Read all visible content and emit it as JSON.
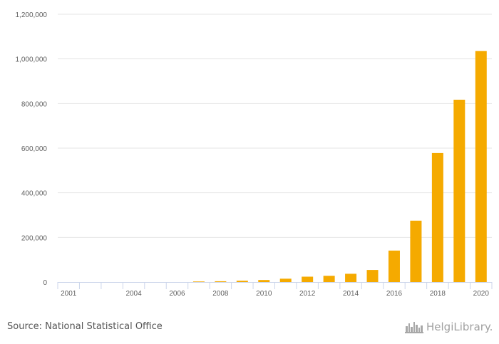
{
  "chart_data": {
    "type": "bar",
    "categories": [
      "2001",
      "2002",
      "2003",
      "2004",
      "2005",
      "2006",
      "2007",
      "2008",
      "2009",
      "2010",
      "2011",
      "2012",
      "2013",
      "2014",
      "2015",
      "2016",
      "2017",
      "2018",
      "2019",
      "2020"
    ],
    "values": [
      0,
      0,
      0,
      0,
      0,
      0,
      2500,
      3500,
      6000,
      9000,
      15000,
      24000,
      28000,
      37000,
      54000,
      141000,
      275000,
      578000,
      817000,
      1035000
    ],
    "x_tick_labels": [
      "2001",
      "2004",
      "2006",
      "2008",
      "2010",
      "2012",
      "2014",
      "2016",
      "2018",
      "2020"
    ],
    "y_ticks": [
      0,
      200000,
      400000,
      600000,
      800000,
      1000000,
      1200000
    ],
    "y_tick_labels": [
      "0",
      "200,000",
      "400,000",
      "600,000",
      "800,000",
      "1,000,000",
      "1,200,000"
    ],
    "ylim": [
      0,
      1200000
    ],
    "title": "",
    "xlabel": "",
    "ylabel": "",
    "bar_color": "#f5aa00",
    "grid": true
  },
  "footer": {
    "source": "Source: National Statistical Office",
    "logo_text": "HelgiLibrary.",
    "logo_icon": "city-skyline-icon"
  }
}
